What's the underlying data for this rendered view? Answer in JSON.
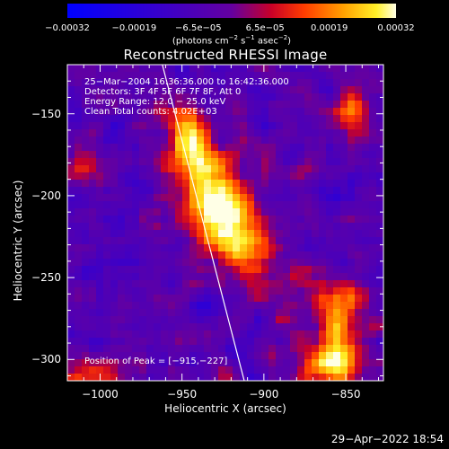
{
  "chart_data": {
    "type": "heatmap",
    "title": "Reconstructed RHESSI Image",
    "xlabel": "Heliocentric X (arcsec)",
    "ylabel": "Heliocentric Y (arcsec)",
    "xlim": [
      -1020,
      -827
    ],
    "ylim": [
      -313,
      -120
    ],
    "x_ticks": [
      -1000,
      -950,
      -900,
      -850
    ],
    "x_tick_labels": [
      "−1000",
      "−950",
      "−900",
      "−850"
    ],
    "y_ticks": [
      -150,
      -200,
      -250,
      -300
    ],
    "y_tick_labels": [
      "−150",
      "−200",
      "−250",
      "−300"
    ],
    "colorbar": {
      "ticks": [
        -0.00032,
        -0.00019,
        -6.5e-05,
        6.5e-05,
        0.00019,
        0.00032
      ],
      "tick_labels": [
        "−0.00032",
        "−0.00019",
        "−6.5e−05",
        "6.5e−05",
        "0.00019",
        "0.00032"
      ],
      "range": [
        -0.00032,
        0.00032
      ],
      "unit_text": "(photons cm",
      "unit_exp1": "−2",
      "unit_mid": " s",
      "unit_exp2": "−1",
      "unit_mid2": " asec",
      "unit_exp3": "−2",
      "unit_end": ")"
    },
    "annotations": [
      "25−Mar−2004 16:36:36.000 to 16:42:36.000",
      "Detectors: 3F 4F 5F 6F 7F 8F, Att 0",
      "Energy Range: 12.0 − 25.0 keV",
      "Clean     Total counts: 4.02E+03"
    ],
    "peak_label": "Position of Peak = [−915,−227]",
    "peak": [
      -915,
      -227
    ],
    "sources": [
      {
        "x": -925,
        "y": -210,
        "sx": 14,
        "sy": 30,
        "rot": -0.55,
        "amp": 1.0
      },
      {
        "x": -945,
        "y": -165,
        "sx": 8,
        "sy": 14,
        "rot": -0.4,
        "amp": 0.75
      },
      {
        "x": -855,
        "y": -275,
        "sx": 12,
        "sy": 16,
        "rot": 0.0,
        "amp": 0.65
      },
      {
        "x": -860,
        "y": -305,
        "sx": 14,
        "sy": 10,
        "rot": 0.0,
        "amp": 0.75
      },
      {
        "x": -845,
        "y": -150,
        "sx": 8,
        "sy": 10,
        "rot": 0.0,
        "amp": 0.5
      },
      {
        "x": -1005,
        "y": -310,
        "sx": 12,
        "sy": 8,
        "rot": 0.0,
        "amp": 0.5
      },
      {
        "x": -1010,
        "y": -180,
        "sx": 6,
        "sy": 10,
        "rot": 0.0,
        "amp": 0.35
      }
    ],
    "limb_line": [
      [
        -962,
        -120
      ],
      [
        -912,
        -313
      ]
    ],
    "grid": false,
    "colors": {
      "limb": "#ffffff",
      "axes": "#ffffff",
      "background": "#000000"
    }
  },
  "footer": {
    "timestamp": "29−Apr−2022 18:54"
  }
}
